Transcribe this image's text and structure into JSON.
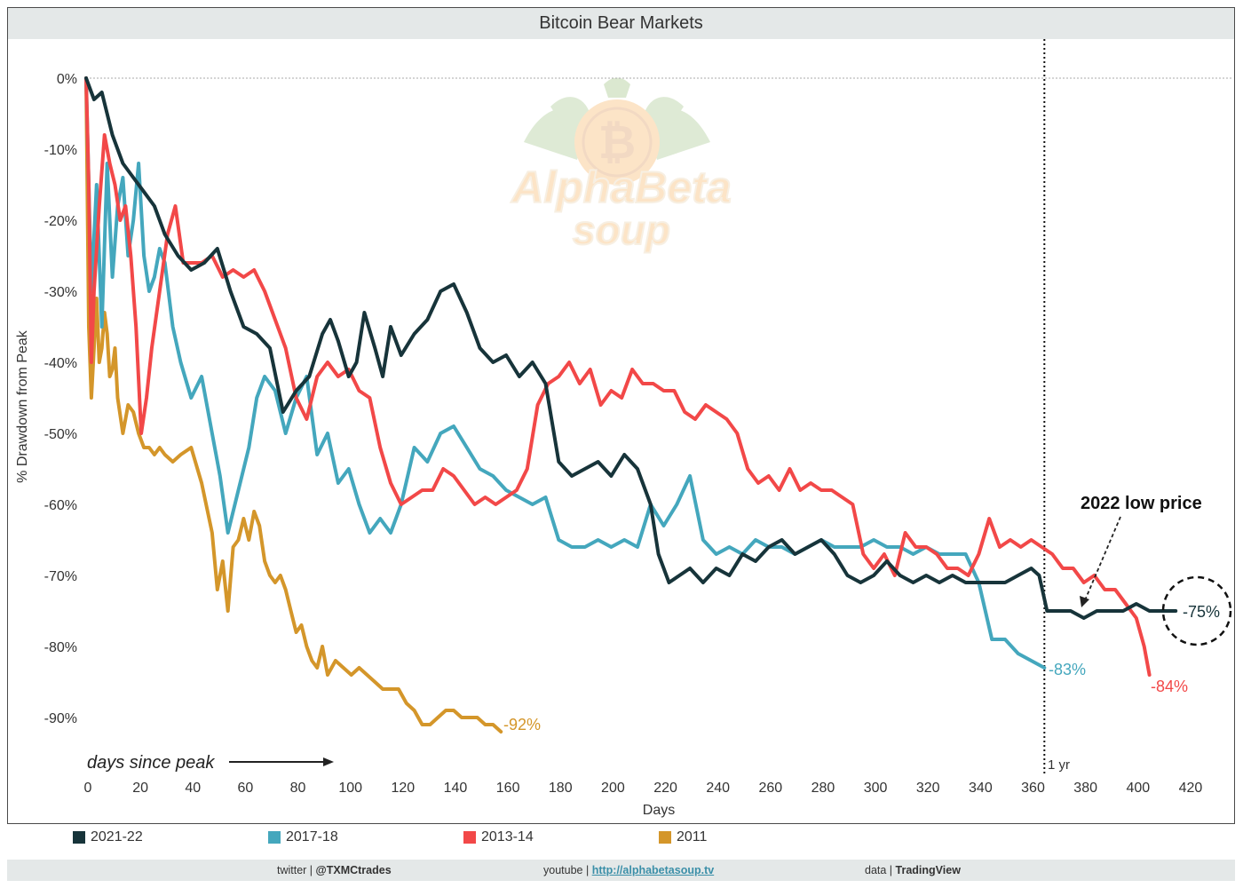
{
  "title": "Bitcoin Bear Markets",
  "colors": {
    "2021-22": "#17343a",
    "2017-18": "#44a7bd",
    "2013-14": "#f24848",
    "2011": "#d4962a",
    "background_title": "#e4e8e8",
    "grid": "#bbbbbb"
  },
  "legend": [
    {
      "label": "2021-22",
      "color": "#17343a"
    },
    {
      "label": "2017-18",
      "color": "#44a7bd"
    },
    {
      "label": "2013-14",
      "color": "#f24848"
    },
    {
      "label": "2011",
      "color": "#d4962a"
    }
  ],
  "annotations": {
    "arrow_text": "days since peak",
    "low_text": "2022 low price",
    "one_year": "1 yr",
    "end_2021": "-75%",
    "end_2017": "-83%",
    "end_2013": "-84%",
    "end_2011": "-92%"
  },
  "watermark": {
    "line1": "AlphaBeta",
    "line2": "soup"
  },
  "footer": {
    "twitter_prefix": "twitter | ",
    "twitter_handle": "@TXMCtrades",
    "youtube_prefix": "youtube | ",
    "youtube_link": "http://alphabetasoup.tv",
    "data_prefix": "data | ",
    "data_source": "TradingView"
  },
  "chart_data": {
    "type": "line",
    "title": "Bitcoin Bear Markets",
    "xlabel": "Days",
    "ylabel": "% Drawdown from Peak",
    "xlim": [
      0,
      430
    ],
    "ylim": [
      -96,
      2
    ],
    "x_ticks": [
      0,
      20,
      40,
      60,
      80,
      100,
      120,
      140,
      160,
      180,
      200,
      220,
      240,
      260,
      280,
      300,
      320,
      340,
      360,
      380,
      400,
      420
    ],
    "y_ticks": [
      0,
      -10,
      -20,
      -30,
      -40,
      -50,
      -60,
      -70,
      -80,
      -90
    ],
    "y_tick_labels": [
      "0%",
      "-10%",
      "-20%",
      "-30%",
      "-40%",
      "-50%",
      "-60%",
      "-70%",
      "-80%",
      "-90%"
    ],
    "reference_line_x": 365,
    "series": [
      {
        "name": "2021-22",
        "color": "#17343a",
        "x": [
          0,
          3,
          6,
          10,
          14,
          18,
          22,
          26,
          30,
          35,
          40,
          45,
          50,
          55,
          60,
          65,
          70,
          75,
          80,
          85,
          90,
          93,
          96,
          100,
          103,
          106,
          110,
          113,
          116,
          120,
          125,
          130,
          135,
          140,
          145,
          150,
          155,
          160,
          165,
          170,
          175,
          180,
          185,
          190,
          195,
          200,
          205,
          210,
          215,
          218,
          222,
          226,
          230,
          235,
          240,
          245,
          250,
          255,
          260,
          265,
          270,
          275,
          280,
          285,
          290,
          295,
          300,
          305,
          310,
          315,
          320,
          325,
          330,
          335,
          340,
          345,
          350,
          355,
          360,
          363,
          366,
          370,
          375,
          380,
          385,
          390,
          395,
          400,
          405,
          410,
          415
        ],
        "values": [
          0,
          -3,
          -2,
          -8,
          -12,
          -14,
          -16,
          -18,
          -22,
          -25,
          -27,
          -26,
          -24,
          -30,
          -35,
          -36,
          -38,
          -47,
          -44,
          -42,
          -36,
          -34,
          -37,
          -42,
          -40,
          -33,
          -38,
          -42,
          -35,
          -39,
          -36,
          -34,
          -30,
          -29,
          -33,
          -38,
          -40,
          -39,
          -42,
          -40,
          -43,
          -54,
          -56,
          -55,
          -54,
          -56,
          -53,
          -55,
          -60,
          -67,
          -71,
          -70,
          -69,
          -71,
          -69,
          -70,
          -67,
          -68,
          -66,
          -65,
          -67,
          -66,
          -65,
          -67,
          -70,
          -71,
          -70,
          -68,
          -70,
          -71,
          -70,
          -71,
          -70,
          -71,
          -71,
          -71,
          -71,
          -70,
          -69,
          -70,
          -75,
          -75,
          -75,
          -76,
          -75,
          -75,
          -75,
          -74,
          -75,
          -75,
          -75
        ]
      },
      {
        "name": "2017-18",
        "color": "#44a7bd",
        "x": [
          0,
          2,
          4,
          6,
          8,
          10,
          12,
          14,
          16,
          18,
          20,
          22,
          24,
          26,
          28,
          30,
          33,
          36,
          40,
          44,
          48,
          51,
          54,
          58,
          62,
          65,
          68,
          72,
          76,
          80,
          84,
          88,
          92,
          96,
          100,
          104,
          108,
          112,
          116,
          120,
          125,
          130,
          135,
          140,
          145,
          150,
          155,
          160,
          165,
          170,
          175,
          180,
          185,
          190,
          195,
          200,
          205,
          210,
          215,
          220,
          225,
          230,
          235,
          240,
          245,
          250,
          255,
          260,
          265,
          270,
          275,
          280,
          285,
          290,
          295,
          300,
          305,
          310,
          315,
          320,
          325,
          330,
          335,
          340,
          345,
          350,
          355,
          360,
          365
        ],
        "values": [
          0,
          -30,
          -15,
          -35,
          -12,
          -28,
          -18,
          -14,
          -25,
          -20,
          -12,
          -25,
          -30,
          -28,
          -24,
          -26,
          -35,
          -40,
          -45,
          -42,
          -50,
          -56,
          -64,
          -58,
          -52,
          -45,
          -42,
          -44,
          -50,
          -45,
          -42,
          -53,
          -50,
          -57,
          -55,
          -60,
          -64,
          -62,
          -64,
          -60,
          -52,
          -54,
          -50,
          -49,
          -52,
          -55,
          -56,
          -58,
          -59,
          -60,
          -59,
          -65,
          -66,
          -66,
          -65,
          -66,
          -65,
          -66,
          -60,
          -63,
          -60,
          -56,
          -65,
          -67,
          -66,
          -67,
          -65,
          -66,
          -66,
          -67,
          -66,
          -65,
          -66,
          -66,
          -66,
          -65,
          -66,
          -66,
          -67,
          -66,
          -67,
          -67,
          -67,
          -71,
          -79,
          -79,
          -81,
          -82,
          -83
        ]
      },
      {
        "name": "2013-14",
        "color": "#f24848",
        "x": [
          0,
          1,
          2,
          3,
          5,
          7,
          9,
          11,
          13,
          15,
          17,
          19,
          21,
          23,
          25,
          28,
          31,
          34,
          37,
          40,
          44,
          48,
          52,
          56,
          60,
          64,
          68,
          72,
          76,
          80,
          84,
          88,
          92,
          96,
          100,
          104,
          108,
          112,
          116,
          120,
          124,
          128,
          132,
          136,
          140,
          144,
          148,
          152,
          156,
          160,
          164,
          168,
          172,
          176,
          180,
          184,
          188,
          192,
          196,
          200,
          204,
          208,
          212,
          216,
          220,
          224,
          228,
          232,
          236,
          240,
          244,
          248,
          252,
          256,
          260,
          264,
          268,
          272,
          276,
          280,
          284,
          288,
          292,
          296,
          300,
          304,
          308,
          312,
          316,
          320,
          324,
          328,
          332,
          336,
          340,
          344,
          348,
          352,
          356,
          360,
          364,
          368,
          372,
          376,
          380,
          384,
          388,
          392,
          396,
          400,
          403,
          405
        ],
        "values": [
          0,
          -15,
          -40,
          -30,
          -18,
          -8,
          -12,
          -15,
          -20,
          -18,
          -25,
          -35,
          -50,
          -45,
          -38,
          -30,
          -22,
          -18,
          -26,
          -26,
          -26,
          -25,
          -28,
          -27,
          -28,
          -27,
          -30,
          -34,
          -38,
          -45,
          -48,
          -42,
          -40,
          -42,
          -41,
          -44,
          -45,
          -52,
          -57,
          -60,
          -59,
          -58,
          -58,
          -55,
          -56,
          -58,
          -60,
          -59,
          -60,
          -59,
          -58,
          -55,
          -46,
          -43,
          -42,
          -40,
          -43,
          -41,
          -46,
          -44,
          -45,
          -41,
          -43,
          -43,
          -44,
          -44,
          -47,
          -48,
          -46,
          -47,
          -48,
          -50,
          -55,
          -57,
          -56,
          -58,
          -55,
          -58,
          -57,
          -58,
          -58,
          -59,
          -60,
          -67,
          -69,
          -67,
          -70,
          -64,
          -66,
          -66,
          -67,
          -69,
          -69,
          -70,
          -67,
          -62,
          -66,
          -65,
          -66,
          -65,
          -66,
          -67,
          -69,
          -69,
          -71,
          -70,
          -72,
          -72,
          -74,
          -76,
          -80,
          -84
        ]
      },
      {
        "name": "2011",
        "color": "#d4962a",
        "x": [
          0,
          1,
          2,
          3,
          4,
          5,
          6,
          7,
          8,
          9,
          10,
          11,
          12,
          14,
          16,
          18,
          20,
          22,
          24,
          26,
          28,
          30,
          33,
          36,
          40,
          44,
          48,
          50,
          52,
          54,
          56,
          58,
          60,
          62,
          64,
          66,
          68,
          70,
          72,
          74,
          76,
          78,
          80,
          82,
          84,
          86,
          88,
          90,
          92,
          95,
          98,
          101,
          104,
          107,
          110,
          113,
          116,
          119,
          122,
          125,
          128,
          131,
          134,
          137,
          140,
          143,
          146,
          149,
          152,
          155,
          158
        ],
        "values": [
          0,
          -35,
          -45,
          -38,
          -31,
          -40,
          -38,
          -33,
          -36,
          -42,
          -41,
          -38,
          -45,
          -50,
          -46,
          -47,
          -50,
          -52,
          -52,
          -53,
          -52,
          -53,
          -54,
          -53,
          -52,
          -57,
          -64,
          -72,
          -68,
          -75,
          -66,
          -65,
          -62,
          -65,
          -61,
          -63,
          -68,
          -70,
          -71,
          -70,
          -72,
          -75,
          -78,
          -77,
          -80,
          -82,
          -83,
          -80,
          -84,
          -82,
          -83,
          -84,
          -83,
          -84,
          -85,
          -86,
          -86,
          -86,
          -88,
          -89,
          -91,
          -91,
          -90,
          -89,
          -89,
          -90,
          -90,
          -90,
          -91,
          -91,
          -92
        ]
      }
    ]
  }
}
